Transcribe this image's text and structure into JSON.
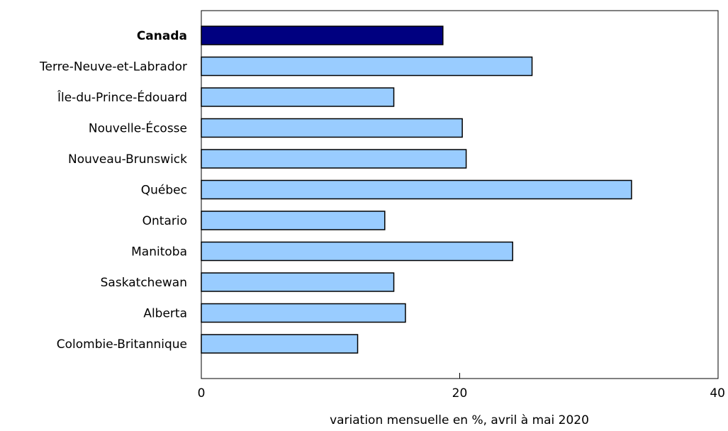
{
  "chart_data": {
    "type": "bar",
    "orientation": "horizontal",
    "title": "",
    "xlabel": "variation mensuelle en %, avril à mai 2020",
    "ylabel": "",
    "xlim": [
      0,
      40
    ],
    "xticks": [
      0,
      20,
      40
    ],
    "grid": false,
    "categories": [
      "Canada",
      "Terre-Neuve-et-Labrador",
      "Île-du-Prince-Édouard",
      "Nouvelle-Écosse",
      "Nouveau-Brunswick",
      "Québec",
      "Ontario",
      "Manitoba",
      "Saskatchewan",
      "Alberta",
      "Colombie-Britannique"
    ],
    "values": [
      18.7,
      25.6,
      14.9,
      20.2,
      20.5,
      33.3,
      14.2,
      24.1,
      14.9,
      15.8,
      12.1
    ],
    "highlight_category": "Canada",
    "colors": {
      "highlight": "#000080",
      "bar": "#99ccff",
      "outline": "#000000"
    }
  }
}
